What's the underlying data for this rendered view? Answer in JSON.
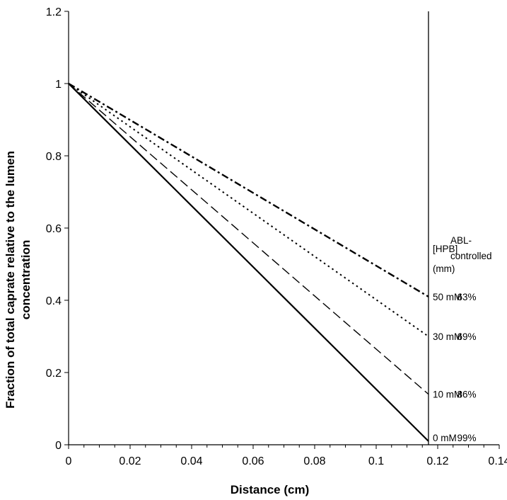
{
  "chart_data": {
    "type": "line",
    "title": "",
    "xlabel": "Distance (cm)",
    "ylabel_lines": [
      "Fraction of total caprate relative to the lumen",
      "concentration"
    ],
    "xlim": [
      0,
      0.14
    ],
    "ylim": [
      0,
      1.2
    ],
    "xticks": [
      "0",
      "0.02",
      "0.04",
      "0.06",
      "0.08",
      "0.1",
      "0.12",
      "0.14"
    ],
    "yticks": [
      "0",
      "0.2",
      "0.4",
      "0.6",
      "0.8",
      "1",
      "1.2"
    ],
    "grid": false,
    "legend": "none",
    "reference_line_x": 0.117,
    "series": [
      {
        "style": "solid",
        "x": [
          0,
          0.117
        ],
        "y": [
          1.0,
          0.01
        ]
      },
      {
        "style": "dash",
        "x": [
          0,
          0.117
        ],
        "y": [
          1.0,
          0.14
        ]
      },
      {
        "style": "dot",
        "x": [
          0,
          0.117
        ],
        "y": [
          1.0,
          0.3
        ]
      },
      {
        "style": "dashdot",
        "x": [
          0,
          0.117
        ],
        "y": [
          1.0,
          0.41
        ]
      }
    ],
    "annotation_headers": {
      "hpb": [
        "[HPB]",
        "(mm)"
      ],
      "abl": [
        "ABL-",
        "controlled"
      ]
    },
    "annotations": [
      {
        "hpb": "50 mM",
        "abl": "63%",
        "y": 0.41
      },
      {
        "hpb": "30 mM",
        "abl": "69%",
        "y": 0.3
      },
      {
        "hpb": "10 mM",
        "abl": "86%",
        "y": 0.14
      },
      {
        "hpb": "0 mM",
        "abl": "99%",
        "y": 0.02
      }
    ]
  }
}
